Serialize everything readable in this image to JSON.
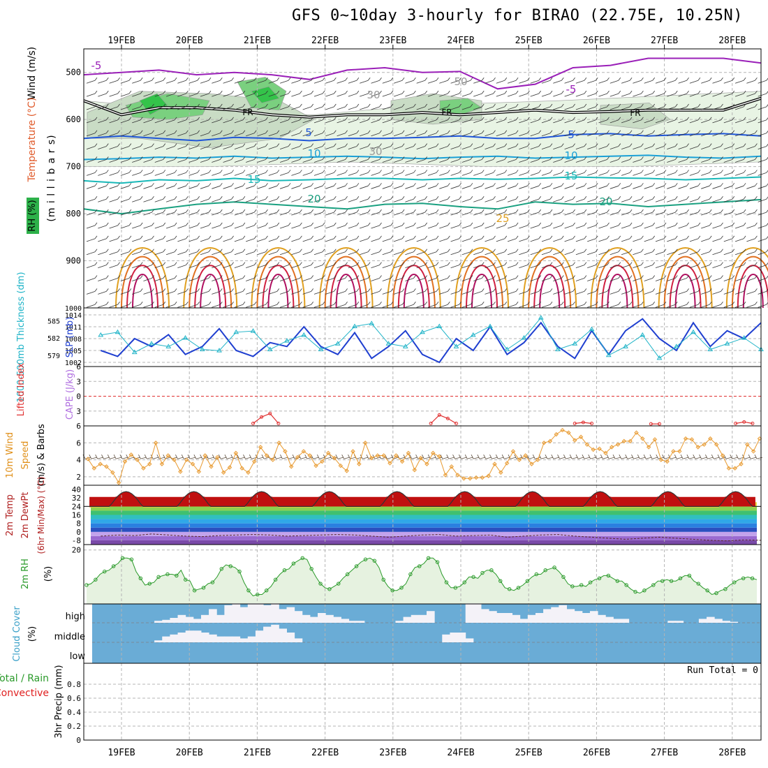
{
  "title": "GFS 0~10day 3-hourly for BIRAO (22.75E, 10.25N)",
  "colors": {
    "grid": "#b4b4b4",
    "rh_green": "#2db14a",
    "slp": "#1f3fd0",
    "thickness": "#20b4c8",
    "lifted": "#e03030",
    "cape": "#b070e0",
    "wind": "#e89a30",
    "rain": "#2a9a2a",
    "conv": "#e02020",
    "cloud": "#6aacd6"
  },
  "chart_data": [
    {
      "type": "line",
      "panel": "upper-air cross section",
      "xlabels": [
        "19FEB",
        "20FEB",
        "21FEB",
        "22FEB",
        "23FEB",
        "24FEB",
        "25FEB",
        "26FEB",
        "27FEB",
        "28FEB"
      ],
      "ylabel_parts": {
        "rh": "RH (%)",
        "temperature": "Temperature (°C)",
        "wind": "Wind (m/s)",
        "mb": "(m i l l i b a r s)"
      },
      "y_ticks": [
        "500",
        "600",
        "700",
        "800",
        "900"
      ],
      "ylim": [
        1000,
        450
      ],
      "y_axis": "inverted pressure",
      "freezing_label": "FR",
      "contour_labels": [
        "-5",
        "-5",
        "5",
        "5",
        "10",
        "10",
        "15",
        "15",
        "20",
        "20",
        "25",
        "50",
        "30",
        "30"
      ],
      "isotherms": [
        {
          "name": "-5",
          "color": "#9a1fb8",
          "values": [
            505,
            500,
            495,
            505,
            500,
            505,
            515,
            495,
            490,
            500,
            498,
            535,
            525,
            490,
            485,
            470,
            470,
            470,
            480
          ]
        },
        {
          "name": "5",
          "color": "#1f56d8",
          "values": [
            640,
            635,
            640,
            645,
            638,
            640,
            645,
            640,
            640,
            638,
            635,
            640,
            640,
            632,
            630,
            635,
            632,
            630,
            635
          ]
        },
        {
          "name": "10",
          "color": "#1aa0d6",
          "values": [
            685,
            683,
            680,
            682,
            678,
            682,
            680,
            678,
            680,
            683,
            680,
            678,
            682,
            680,
            678,
            676,
            680,
            682,
            678
          ]
        },
        {
          "name": "15",
          "color": "#18b8b8",
          "values": [
            730,
            735,
            728,
            730,
            725,
            730,
            728,
            725,
            725,
            728,
            725,
            727,
            725,
            722,
            724,
            725,
            728,
            725,
            722
          ]
        },
        {
          "name": "20",
          "color": "#1aa080",
          "values": [
            790,
            800,
            790,
            780,
            775,
            780,
            785,
            790,
            780,
            778,
            785,
            790,
            775,
            780,
            778,
            785,
            780,
            775,
            770
          ]
        }
      ],
      "freezing_level": [
        560,
        590,
        575,
        575,
        580,
        590,
        595,
        590,
        590,
        585,
        590,
        585,
        580,
        585,
        583,
        580,
        580,
        580,
        555
      ]
    },
    {
      "type": "line",
      "panel": "slp-thickness",
      "ylabel_left": "1000-500mb Thickness (dm)",
      "ylabel_right": "SLP (mb)",
      "left_ticks": [
        "585",
        "582",
        "579"
      ],
      "right_ticks": [
        "1014",
        "1011",
        "1008",
        "1005",
        "1002"
      ],
      "top_tick": "1000",
      "slp_ylim": [
        1000,
        1014
      ],
      "thickness_ylim": [
        576,
        586
      ],
      "x_hours": [
        0,
        6,
        12,
        18,
        24,
        30,
        36,
        42,
        48,
        54,
        60,
        66,
        72,
        78,
        84,
        90,
        96,
        102,
        108,
        114,
        120,
        126,
        132,
        138,
        144,
        150,
        156,
        162,
        168,
        174,
        180,
        186,
        192,
        198,
        204,
        210,
        216,
        222,
        228,
        234
      ],
      "slp": [
        1005,
        1003.5,
        1008,
        1006,
        1009,
        1004,
        1006,
        1010.5,
        1005,
        1003.5,
        1007,
        1006,
        1011,
        1006,
        1004,
        1009.5,
        1003,
        1006,
        1010,
        1004,
        1002,
        1008,
        1005,
        1011,
        1004,
        1007,
        1012,
        1006,
        1003,
        1010,
        1004,
        1010,
        1013,
        1008,
        1005,
        1012,
        1006,
        1010,
        1008,
        1012
      ],
      "thickness": [
        582.5,
        583,
        579.5,
        581,
        580.5,
        582,
        580,
        579.8,
        583,
        583.2,
        580,
        581.5,
        582.5,
        580,
        581,
        584,
        584.5,
        581,
        580.5,
        583,
        584,
        580.5,
        582.5,
        584,
        580,
        582,
        585.5,
        580,
        581,
        583.5,
        579,
        580.5,
        582.5,
        578.5,
        580.5,
        583,
        580,
        581,
        582,
        580
      ]
    },
    {
      "type": "line",
      "panel": "lifted-cape",
      "ylabel_left": "Lifted Index",
      "ylabel_right": "CAPE (J/kg)",
      "y_ticks": [
        "6",
        "3",
        "0",
        "3",
        "6"
      ],
      "ylim": [
        -6,
        6
      ],
      "lifted_index_segments": [
        {
          "start_hour": 54,
          "values": [
            5.5,
            4.2,
            3.5,
            5.5
          ]
        },
        {
          "start_hour": 117,
          "values": [
            5.5,
            3.8,
            4.5,
            5.5
          ]
        },
        {
          "start_hour": 168,
          "values": [
            5.5,
            5.3,
            5.5
          ]
        },
        {
          "start_hour": 195,
          "values": [
            5.6,
            5.6
          ]
        },
        {
          "start_hour": 225,
          "values": [
            5.5,
            5.2,
            5.5
          ]
        }
      ]
    },
    {
      "type": "line",
      "panel": "10m wind",
      "ylabel_parts": {
        "a": "10m Wind",
        "b": "Speed",
        "c": "(m/s) & Barbs"
      },
      "y_ticks": [
        "6",
        "4",
        "2"
      ],
      "ylim": [
        1,
        8
      ],
      "wind_speed": [
        4.1,
        3,
        3.5,
        3.2,
        2.5,
        1.3,
        3.8,
        4.6,
        4,
        3,
        3.5,
        6,
        3.5,
        4.5,
        4,
        2.6,
        4,
        3.5,
        2.6,
        4.5,
        3.2,
        4.3,
        2.5,
        3.1,
        4.8,
        3,
        2.5,
        3.8,
        5.5,
        4.5,
        4,
        6,
        5,
        3.2,
        4.3,
        5,
        4.5,
        3.3,
        3.8,
        4.8,
        4.2,
        3.3,
        2.7,
        5,
        3.5,
        6,
        4.2,
        4.5,
        4.5,
        3.6,
        4.5,
        3.8,
        4.8,
        2.8,
        4.2,
        3.5,
        4.8,
        4.4,
        2.2,
        3.2,
        2.2,
        1.8,
        1.8,
        1.9,
        1.9,
        2.1,
        3.5,
        2.5,
        3.6,
        5,
        4,
        4.5,
        3.5,
        4,
        6,
        6.2,
        7,
        7.5,
        7.2,
        6.3,
        6.7,
        5.8,
        5.2,
        5.3,
        4.8,
        5.5,
        5.8,
        6.2,
        6.2,
        7.2,
        6.5,
        5.5,
        6.4,
        4,
        3.8,
        5,
        5,
        6.5,
        6.4,
        5.5,
        5.8,
        6.5,
        5.8,
        4.5,
        3,
        3,
        3.5,
        5.8,
        5,
        6.5
      ]
    },
    {
      "type": "area",
      "panel": "2m temperature",
      "ylabel_parts": {
        "a": "2m Temp",
        "b": "2m DewPt",
        "c": "(6hr Min/Max) (°C)"
      },
      "y_ticks": [
        "40",
        "32",
        "24",
        "16",
        "8",
        "0",
        "-8"
      ],
      "ylim": [
        -12,
        44
      ],
      "temp_mean_cycle": {
        "min_c": 23,
        "max_c": 38,
        "period_hours": 24
      },
      "dewpoint": [
        -4,
        -3,
        -3.5,
        -2,
        -3,
        -4,
        -4.5,
        -3.5,
        -3,
        -2.5,
        -3,
        -4,
        -3.5,
        -3,
        -2.5,
        -3,
        -4,
        -5,
        -4,
        -3,
        -2.5,
        -4,
        -3.5,
        -3,
        -5,
        -4,
        -3,
        -2.5,
        -4,
        -5,
        -6,
        -7,
        -6,
        -5,
        -6,
        -7,
        -8,
        -8.5,
        -7.5,
        -8
      ]
    },
    {
      "type": "area",
      "panel": "2m RH",
      "ylabel_parts": {
        "a": "2m RH",
        "b": "(%)"
      },
      "y_ticks": [
        "20"
      ],
      "ylim": [
        0,
        22
      ],
      "rh": [
        7,
        7.5,
        9,
        11,
        12,
        12.5,
        14,
        15,
        17,
        17,
        16.5,
        12,
        9.5,
        7,
        7.5,
        8,
        10,
        10.5,
        11,
        11,
        10.5,
        12.5,
        9,
        8.5,
        5,
        5.5,
        6,
        7.5,
        8,
        10,
        13,
        14.5,
        14,
        13.5,
        12,
        8,
        5,
        3,
        3.5,
        3.5,
        5,
        6.5,
        9,
        11,
        12.5,
        13,
        15,
        16,
        17,
        16.5,
        13,
        10,
        7.5,
        6,
        5.5,
        6.5,
        7.5,
        9.5,
        11,
        12.5,
        14,
        15.5,
        16.5,
        17,
        16,
        13.5,
        9,
        6.5,
        5,
        5,
        6,
        7.5,
        11,
        13.5,
        14,
        15,
        17,
        17,
        15.5,
        11,
        8,
        6,
        6,
        6.5,
        8,
        10,
        10,
        9.5,
        11.5,
        12.5,
        12.5,
        11,
        8.5,
        6,
        5.5,
        5,
        6,
        7,
        8.5,
        10,
        11,
        11,
        12.5,
        13,
        13.5,
        12,
        10,
        7.5,
        6.5,
        6.5,
        7,
        6.5,
        8,
        9,
        9.5,
        10.5,
        10.5,
        9.5,
        8.5,
        8.5,
        7,
        5.5,
        4.5,
        4,
        5,
        6,
        7,
        8.5,
        8.5,
        9,
        8.5,
        8.5,
        9.5,
        10.5,
        10.5,
        8.5,
        7.5,
        6,
        5,
        3.5,
        4,
        5,
        5.5,
        7,
        8,
        9,
        9.5,
        10,
        9.5,
        9
      ]
    },
    {
      "type": "heatmap",
      "panel": "cloud cover",
      "ylabel_parts": {
        "a": "Cloud Cover",
        "b": "(%)"
      },
      "levels": [
        "high",
        "middle",
        "low"
      ],
      "high": [
        0,
        0,
        0,
        0,
        0,
        0,
        0,
        0,
        10,
        15,
        25,
        40,
        30,
        20,
        40,
        70,
        40,
        90,
        100,
        80,
        100,
        100,
        90,
        100,
        70,
        80,
        60,
        40,
        30,
        50,
        40,
        30,
        20,
        10,
        10,
        0,
        0,
        0,
        0,
        10,
        30,
        40,
        40,
        60,
        0,
        0,
        0,
        0,
        100,
        100,
        70,
        60,
        50,
        50,
        40,
        20,
        40,
        50,
        70,
        80,
        90,
        70,
        60,
        50,
        60,
        40,
        30,
        20,
        20,
        0,
        0,
        0,
        0,
        0,
        10,
        10,
        0,
        0,
        20,
        30,
        20,
        10,
        5,
        0,
        0,
        0
      ],
      "middle": [
        0,
        0,
        0,
        0,
        0,
        0,
        0,
        0,
        10,
        30,
        40,
        50,
        60,
        60,
        50,
        40,
        30,
        30,
        30,
        20,
        30,
        60,
        80,
        90,
        70,
        50,
        20,
        0,
        0,
        0,
        0,
        0,
        0,
        0,
        0,
        0,
        0,
        0,
        0,
        0,
        0,
        0,
        0,
        0,
        0,
        40,
        50,
        50,
        20,
        0,
        0,
        0,
        0,
        0,
        0,
        0,
        0,
        0,
        0,
        0,
        0,
        0,
        0,
        0,
        0,
        0,
        0,
        0,
        0,
        0,
        0,
        0,
        0,
        0,
        0,
        0,
        0,
        0,
        0,
        0,
        0,
        0,
        0,
        0,
        0,
        0
      ]
    },
    {
      "type": "bar",
      "panel": "3hr precipitation",
      "ylabel_parts": {
        "a": "Total / Rain",
        "b": "Convective",
        "c": "3hr Precip (mm)"
      },
      "y_ticks": [
        "0.8",
        "0.6",
        "0.4",
        "0.2",
        "0"
      ],
      "ylim": [
        0,
        1
      ],
      "run_total_label": "Run Total = 0",
      "values": []
    }
  ]
}
